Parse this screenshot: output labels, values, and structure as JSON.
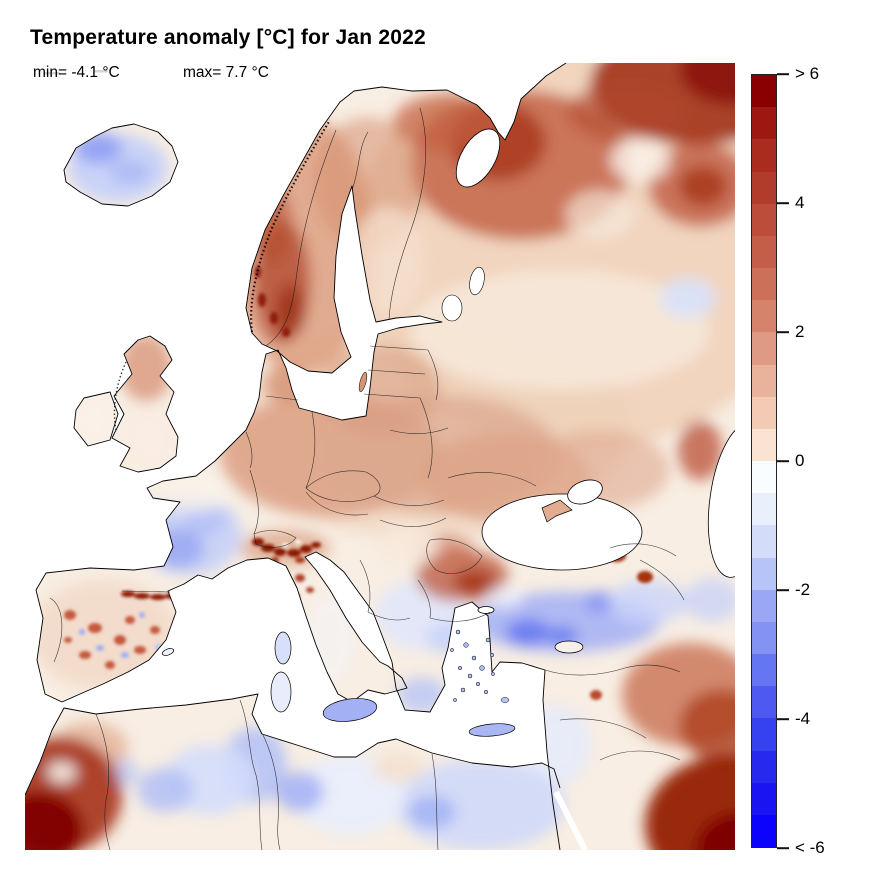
{
  "header": {
    "title": "Temperature anomaly [°C] for Jan 2022",
    "min_label": "min= -4.1 °C",
    "max_label": "max= 7.7 °C"
  },
  "colorbar": {
    "orientation": "vertical",
    "position": "right",
    "border_color": "#222222",
    "segments": [
      "#8A0000",
      "#9C1810",
      "#A92C1E",
      "#B23C2B",
      "#BB4D3A",
      "#C45E49",
      "#CD7059",
      "#D6836C",
      "#DF9A83",
      "#E9B29B",
      "#F3CAB4",
      "#FBE3D3",
      "#FAFDFF",
      "#E9EFFB",
      "#D3DDF9",
      "#B7C4F7",
      "#9AA7F5",
      "#8492F4",
      "#6576F2",
      "#4D59F0",
      "#3642EF",
      "#2829EE",
      "#1A14F3",
      "#0B03FB"
    ],
    "ticks": [
      {
        "label": "> 6",
        "value": 6,
        "position": 0
      },
      {
        "label": "4",
        "value": 4,
        "position": 0.16667
      },
      {
        "label": "2",
        "value": 2,
        "position": 0.33333
      },
      {
        "label": "0",
        "value": 0,
        "position": 0.5
      },
      {
        "label": "-2",
        "value": -2,
        "position": 0.66667
      },
      {
        "label": "-4",
        "value": -4,
        "position": 0.83333
      },
      {
        "label": "< -6",
        "value": -6,
        "position": 1
      }
    ]
  },
  "chart_data": {
    "type": "heatmap",
    "title": "Temperature anomaly [°C] for Jan 2022",
    "variable": "temperature anomaly",
    "units": "°C",
    "period": "Jan 2022",
    "geographic_domain": "Europe, North Africa and Middle East",
    "min_value": -4.1,
    "max_value": 7.7,
    "scale": {
      "range_capped": [
        -6,
        6
      ],
      "step": 0.5,
      "tick_values": [
        6,
        4,
        2,
        0,
        -2,
        -4,
        -6
      ],
      "palette_positive": "white to dark red",
      "palette_negative": "white to blue",
      "sea_color": "#ffffff",
      "legend_position": "right"
    },
    "region_anomalies_estimated": [
      {
        "region": "Iceland",
        "anomaly_c": -1.5
      },
      {
        "region": "Norway mountains",
        "anomaly_c": 4
      },
      {
        "region": "Sweden / Finland",
        "anomaly_c": 2
      },
      {
        "region": "Kola Peninsula / White Sea",
        "anomaly_c": 3.5
      },
      {
        "region": "Northeast Russia (map corner)",
        "anomaly_c": 5.5
      },
      {
        "region": "Central Russia",
        "anomaly_c": 1
      },
      {
        "region": "Scotland",
        "anomaly_c": 2
      },
      {
        "region": "England / Ireland",
        "anomaly_c": 0.5
      },
      {
        "region": "Germany / Poland / Baltics",
        "anomaly_c": 2
      },
      {
        "region": "Alps (local maxima)",
        "anomaly_c": 6
      },
      {
        "region": "France (center-south)",
        "anomaly_c": -1.5
      },
      {
        "region": "Pyrenees (local maxima)",
        "anomaly_c": 5
      },
      {
        "region": "Spain (patchy)",
        "anomaly_c": 1
      },
      {
        "region": "Italy",
        "anomaly_c": 0
      },
      {
        "region": "Carpathians / Romania",
        "anomaly_c": 3.5
      },
      {
        "region": "Balkans",
        "anomaly_c": -0.5
      },
      {
        "region": "Turkey / Anatolia",
        "anomaly_c": -3
      },
      {
        "region": "Levant / Egypt",
        "anomaly_c": -1
      },
      {
        "region": "Morocco (map corner)",
        "anomaly_c": 6
      },
      {
        "region": "Algeria / Libya",
        "anomaly_c": -1.5
      },
      {
        "region": "Arabia (map corner)",
        "anomaly_c": 6
      },
      {
        "region": "Mesopotamia",
        "anomaly_c": 2.5
      }
    ]
  }
}
